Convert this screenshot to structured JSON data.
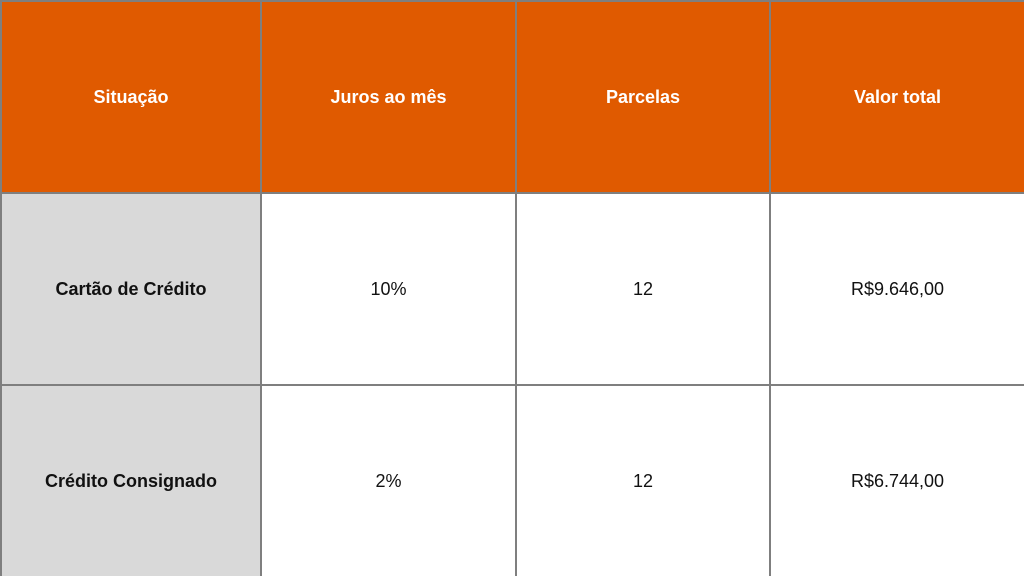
{
  "colors": {
    "header_bg": "#e05a00",
    "first_col_bg": "#d9d9d9",
    "border": "#7f7f7f"
  },
  "table": {
    "headers": [
      "Situação",
      "Juros ao mês",
      "Parcelas",
      "Valor total"
    ],
    "rows": [
      [
        "Cartão de Crédito",
        "10%",
        "12",
        "R$9.646,00"
      ],
      [
        "Crédito Consignado",
        "2%",
        "12",
        "R$6.744,00"
      ]
    ]
  }
}
